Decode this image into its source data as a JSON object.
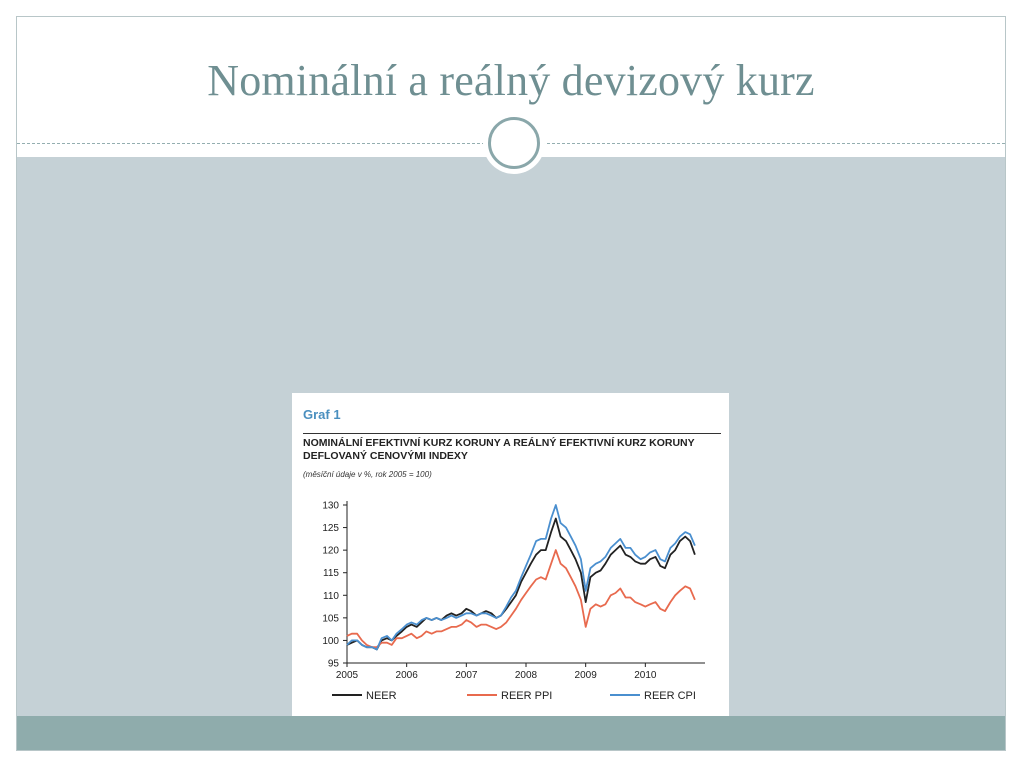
{
  "slide": {
    "title": "Nominální a reálný devizový kurz",
    "colors": {
      "title": "#6f8f92",
      "body": "#c5d1d6",
      "footer": "#8facac"
    }
  },
  "figure": {
    "label": "Graf 1",
    "title": "NOMINÁLNÍ EFEKTIVNÍ KURZ KORUNY A REÁLNÝ EFEKTIVNÍ KURZ KORUNY DEFLOVANÝ CENOVÝMI INDEXY",
    "subtitle": "(měsíční údaje v %, rok 2005 = 100)"
  },
  "chart_data": {
    "type": "line",
    "x_ticks": [
      "2005",
      "2006",
      "2007",
      "2008",
      "2009",
      "2010"
    ],
    "x_range": [
      2005.0,
      2011.0
    ],
    "ylim": [
      95,
      130
    ],
    "y_ticks": [
      95,
      100,
      105,
      110,
      115,
      120,
      125,
      130
    ],
    "grid": false,
    "legend_position": "bottom",
    "series": [
      {
        "name": "NEER",
        "color": "#222222",
        "points": [
          [
            2005.0,
            99
          ],
          [
            2005.08,
            99.5
          ],
          [
            2005.17,
            100
          ],
          [
            2005.25,
            99
          ],
          [
            2005.33,
            98.5
          ],
          [
            2005.42,
            98.5
          ],
          [
            2005.5,
            98
          ],
          [
            2005.58,
            100
          ],
          [
            2005.67,
            100.5
          ],
          [
            2005.75,
            100
          ],
          [
            2005.83,
            101
          ],
          [
            2005.92,
            102
          ],
          [
            2006.0,
            103
          ],
          [
            2006.08,
            103.5
          ],
          [
            2006.17,
            103
          ],
          [
            2006.25,
            104
          ],
          [
            2006.33,
            105
          ],
          [
            2006.42,
            104.5
          ],
          [
            2006.5,
            105
          ],
          [
            2006.58,
            104.5
          ],
          [
            2006.67,
            105.5
          ],
          [
            2006.75,
            106
          ],
          [
            2006.83,
            105.5
          ],
          [
            2006.92,
            106
          ],
          [
            2007.0,
            107
          ],
          [
            2007.08,
            106.5
          ],
          [
            2007.17,
            105.5
          ],
          [
            2007.25,
            106
          ],
          [
            2007.33,
            106.5
          ],
          [
            2007.42,
            106
          ],
          [
            2007.5,
            105
          ],
          [
            2007.58,
            105.5
          ],
          [
            2007.67,
            107
          ],
          [
            2007.75,
            108.5
          ],
          [
            2007.83,
            110
          ],
          [
            2007.92,
            113
          ],
          [
            2008.0,
            115
          ],
          [
            2008.08,
            117
          ],
          [
            2008.17,
            119
          ],
          [
            2008.25,
            120
          ],
          [
            2008.33,
            120
          ],
          [
            2008.42,
            124
          ],
          [
            2008.5,
            127
          ],
          [
            2008.58,
            123
          ],
          [
            2008.67,
            122
          ],
          [
            2008.75,
            120
          ],
          [
            2008.83,
            118
          ],
          [
            2008.92,
            115
          ],
          [
            2009.0,
            108.5
          ],
          [
            2009.08,
            114
          ],
          [
            2009.17,
            115
          ],
          [
            2009.25,
            115.5
          ],
          [
            2009.33,
            117
          ],
          [
            2009.42,
            119
          ],
          [
            2009.5,
            120
          ],
          [
            2009.58,
            121
          ],
          [
            2009.67,
            119
          ],
          [
            2009.75,
            118.5
          ],
          [
            2009.83,
            117.5
          ],
          [
            2009.92,
            117
          ],
          [
            2010.0,
            117
          ],
          [
            2010.08,
            118
          ],
          [
            2010.17,
            118.5
          ],
          [
            2010.25,
            116.5
          ],
          [
            2010.33,
            116
          ],
          [
            2010.42,
            119
          ],
          [
            2010.5,
            120
          ],
          [
            2010.58,
            122
          ],
          [
            2010.67,
            123
          ],
          [
            2010.75,
            122
          ],
          [
            2010.83,
            119
          ]
        ]
      },
      {
        "name": "REER PPI",
        "color": "#e86a4e",
        "points": [
          [
            2005.0,
            101
          ],
          [
            2005.08,
            101.5
          ],
          [
            2005.17,
            101.5
          ],
          [
            2005.25,
            100
          ],
          [
            2005.33,
            99
          ],
          [
            2005.42,
            98.5
          ],
          [
            2005.5,
            98.5
          ],
          [
            2005.58,
            99.5
          ],
          [
            2005.67,
            99.5
          ],
          [
            2005.75,
            99
          ],
          [
            2005.83,
            100.5
          ],
          [
            2005.92,
            100.5
          ],
          [
            2006.0,
            101
          ],
          [
            2006.08,
            101.5
          ],
          [
            2006.17,
            100.5
          ],
          [
            2006.25,
            101
          ],
          [
            2006.33,
            102
          ],
          [
            2006.42,
            101.5
          ],
          [
            2006.5,
            102
          ],
          [
            2006.58,
            102
          ],
          [
            2006.67,
            102.5
          ],
          [
            2006.75,
            103
          ],
          [
            2006.83,
            103
          ],
          [
            2006.92,
            103.5
          ],
          [
            2007.0,
            104.5
          ],
          [
            2007.08,
            104
          ],
          [
            2007.17,
            103
          ],
          [
            2007.25,
            103.5
          ],
          [
            2007.33,
            103.5
          ],
          [
            2007.42,
            103
          ],
          [
            2007.5,
            102.5
          ],
          [
            2007.58,
            103
          ],
          [
            2007.67,
            104
          ],
          [
            2007.75,
            105.5
          ],
          [
            2007.83,
            107
          ],
          [
            2007.92,
            109
          ],
          [
            2008.0,
            110.5
          ],
          [
            2008.08,
            112
          ],
          [
            2008.17,
            113.5
          ],
          [
            2008.25,
            114
          ],
          [
            2008.33,
            113.5
          ],
          [
            2008.42,
            117
          ],
          [
            2008.5,
            120
          ],
          [
            2008.58,
            117
          ],
          [
            2008.67,
            116
          ],
          [
            2008.75,
            114
          ],
          [
            2008.83,
            112
          ],
          [
            2008.92,
            109
          ],
          [
            2009.0,
            103
          ],
          [
            2009.08,
            107
          ],
          [
            2009.17,
            108
          ],
          [
            2009.25,
            107.5
          ],
          [
            2009.33,
            108
          ],
          [
            2009.42,
            110
          ],
          [
            2009.5,
            110.5
          ],
          [
            2009.58,
            111.5
          ],
          [
            2009.67,
            109.5
          ],
          [
            2009.75,
            109.5
          ],
          [
            2009.83,
            108.5
          ],
          [
            2009.92,
            108
          ],
          [
            2010.0,
            107.5
          ],
          [
            2010.08,
            108
          ],
          [
            2010.17,
            108.5
          ],
          [
            2010.25,
            107
          ],
          [
            2010.33,
            106.5
          ],
          [
            2010.42,
            108.5
          ],
          [
            2010.5,
            110
          ],
          [
            2010.58,
            111
          ],
          [
            2010.67,
            112
          ],
          [
            2010.75,
            111.5
          ],
          [
            2010.83,
            109
          ]
        ]
      },
      {
        "name": "REER CPI",
        "color": "#4a8fcf",
        "points": [
          [
            2005.0,
            99
          ],
          [
            2005.08,
            100
          ],
          [
            2005.17,
            100
          ],
          [
            2005.25,
            99
          ],
          [
            2005.33,
            98.5
          ],
          [
            2005.42,
            98.5
          ],
          [
            2005.5,
            98
          ],
          [
            2005.58,
            100.5
          ],
          [
            2005.67,
            101
          ],
          [
            2005.75,
            100
          ],
          [
            2005.83,
            101.5
          ],
          [
            2005.92,
            102.5
          ],
          [
            2006.0,
            103.5
          ],
          [
            2006.08,
            104
          ],
          [
            2006.17,
            103.5
          ],
          [
            2006.25,
            104.5
          ],
          [
            2006.33,
            105
          ],
          [
            2006.42,
            104.5
          ],
          [
            2006.5,
            105
          ],
          [
            2006.58,
            104.5
          ],
          [
            2006.67,
            105
          ],
          [
            2006.75,
            105.5
          ],
          [
            2006.83,
            105
          ],
          [
            2006.92,
            105.5
          ],
          [
            2007.0,
            106
          ],
          [
            2007.08,
            106
          ],
          [
            2007.17,
            105.5
          ],
          [
            2007.25,
            106
          ],
          [
            2007.33,
            106
          ],
          [
            2007.42,
            105.5
          ],
          [
            2007.5,
            105
          ],
          [
            2007.58,
            105.5
          ],
          [
            2007.67,
            107.5
          ],
          [
            2007.75,
            109.5
          ],
          [
            2007.83,
            111
          ],
          [
            2007.92,
            114
          ],
          [
            2008.0,
            116.5
          ],
          [
            2008.08,
            119
          ],
          [
            2008.17,
            122
          ],
          [
            2008.25,
            122.5
          ],
          [
            2008.33,
            122.5
          ],
          [
            2008.42,
            127
          ],
          [
            2008.5,
            130
          ],
          [
            2008.58,
            126
          ],
          [
            2008.67,
            125
          ],
          [
            2008.75,
            123
          ],
          [
            2008.83,
            121
          ],
          [
            2008.92,
            118
          ],
          [
            2009.0,
            111
          ],
          [
            2009.08,
            116
          ],
          [
            2009.17,
            117
          ],
          [
            2009.25,
            117.5
          ],
          [
            2009.33,
            118.5
          ],
          [
            2009.42,
            120.5
          ],
          [
            2009.5,
            121.5
          ],
          [
            2009.58,
            122.5
          ],
          [
            2009.67,
            120.5
          ],
          [
            2009.75,
            120.5
          ],
          [
            2009.83,
            119
          ],
          [
            2009.92,
            118
          ],
          [
            2010.0,
            118.5
          ],
          [
            2010.08,
            119.5
          ],
          [
            2010.17,
            120
          ],
          [
            2010.25,
            118
          ],
          [
            2010.33,
            117.5
          ],
          [
            2010.42,
            120.5
          ],
          [
            2010.5,
            121.5
          ],
          [
            2010.58,
            123
          ],
          [
            2010.67,
            124
          ],
          [
            2010.75,
            123.5
          ],
          [
            2010.83,
            121
          ]
        ]
      }
    ]
  }
}
